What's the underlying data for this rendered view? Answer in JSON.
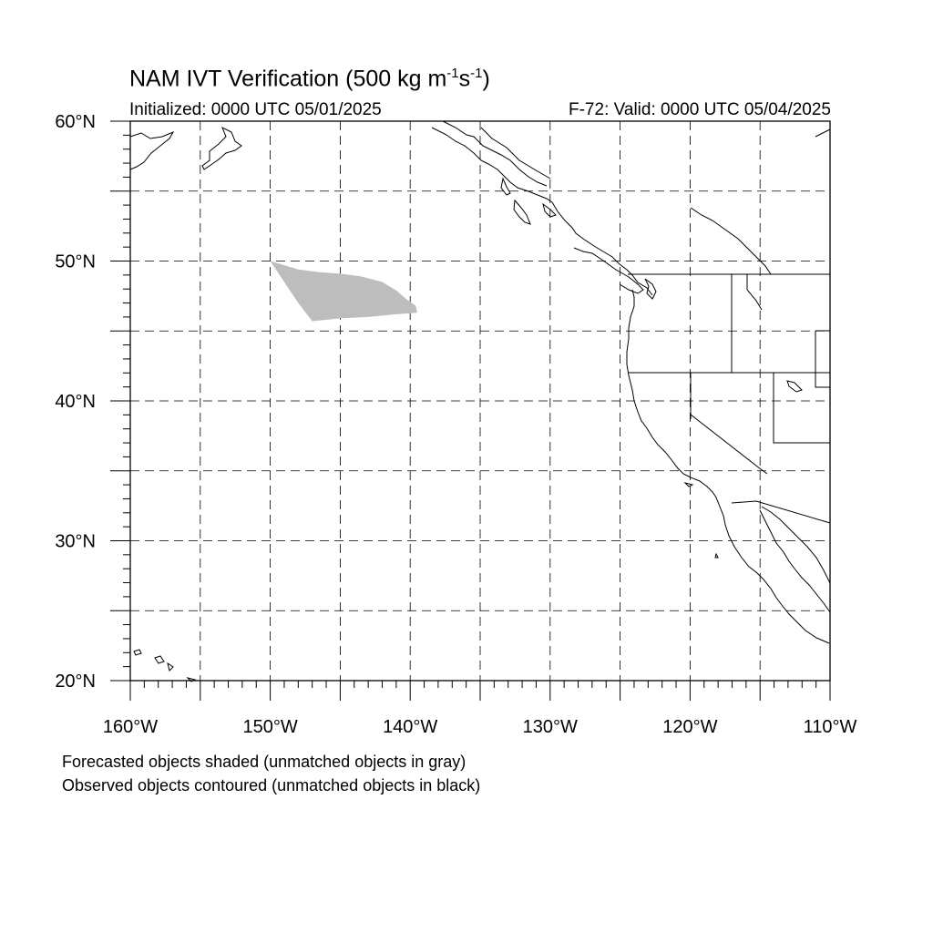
{
  "title": {
    "main": "NAM IVT Verification (500 kg m",
    "sup1": "-1",
    "mid": "s",
    "sup2": "-1",
    "end": ")"
  },
  "initialized": "Initialized: 0000 UTC 05/01/2025",
  "valid": "F-72: Valid: 0000 UTC 05/04/2025",
  "notes": {
    "forecast": "Forecasted objects shaded (unmatched objects in gray)",
    "observed": "Observed objects contoured (unmatched objects in black)"
  },
  "map": {
    "extent": {
      "lon": [
        -160,
        -110
      ],
      "lat": [
        20,
        60
      ]
    },
    "lat_labels": [
      {
        "lat": 60,
        "text": "60°N"
      },
      {
        "lat": 50,
        "text": "50°N"
      },
      {
        "lat": 40,
        "text": "40°N"
      },
      {
        "lat": 30,
        "text": "30°N"
      },
      {
        "lat": 20,
        "text": "20°N"
      }
    ],
    "lon_labels": [
      {
        "lon": -160,
        "text": "160°W"
      },
      {
        "lon": -150,
        "text": "150°W"
      },
      {
        "lon": -140,
        "text": "140°W"
      },
      {
        "lon": -130,
        "text": "130°W"
      },
      {
        "lon": -120,
        "text": "120°W"
      },
      {
        "lon": -110,
        "text": "110°W"
      }
    ],
    "grid_lat": [
      25,
      30,
      35,
      40,
      45,
      50,
      55
    ],
    "grid_lon": [
      -155,
      -150,
      -145,
      -140,
      -135,
      -130,
      -125,
      -120,
      -115
    ],
    "colors": {
      "forecast_object": "#bdbdbd",
      "line": "#000000"
    },
    "forecast_object_polygon_lonlat": [
      [
        -150.0,
        50.0
      ],
      [
        -148.0,
        49.4
      ],
      [
        -146.5,
        49.2
      ],
      [
        -145.0,
        49.1
      ],
      [
        -143.5,
        48.9
      ],
      [
        -142.0,
        48.5
      ],
      [
        -141.0,
        47.9
      ],
      [
        -140.3,
        47.3
      ],
      [
        -139.6,
        46.8
      ],
      [
        -139.5,
        46.3
      ],
      [
        -141.0,
        46.2
      ],
      [
        -143.0,
        46.0
      ],
      [
        -145.0,
        45.9
      ],
      [
        -147.0,
        45.7
      ],
      [
        -148.0,
        47.0
      ],
      [
        -149.2,
        48.8
      ],
      [
        -150.0,
        50.0
      ]
    ]
  }
}
